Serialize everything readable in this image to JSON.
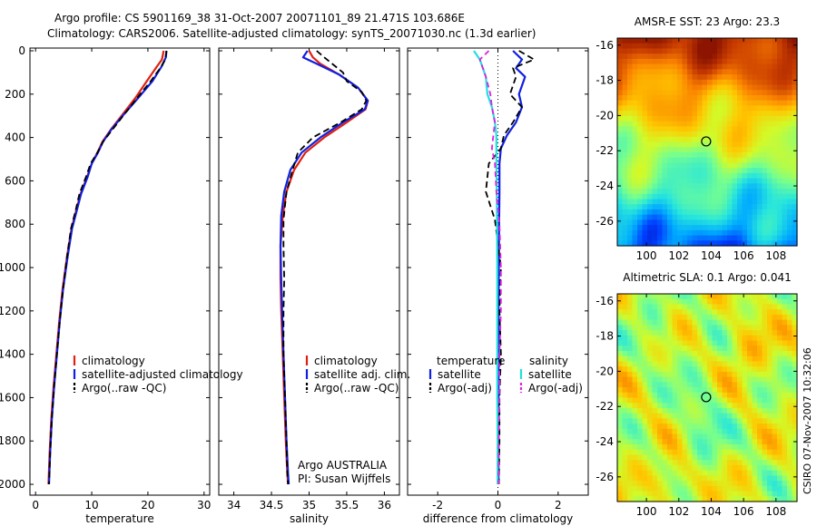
{
  "header": {
    "line1": "Argo profile: CS 5901169_38 31-Oct-2007 20071101_89 21.471S 103.686E",
    "line2": "Climatology: CARS2006. Satellite-adjusted climatology: synTS_20071030.nc (1.3d earlier)"
  },
  "side_label": "CSIRO 07-Nov-2007 10:32:06",
  "colors": {
    "climatology": "#e02010",
    "satellite": "#1020e0",
    "argo": "#000000",
    "sat_sal": "#20e0e0",
    "argo_sal": "#e020e0"
  },
  "chart_data": [
    {
      "type": "line",
      "id": "temperature",
      "xlabel": "temperature",
      "ylabel": "",
      "xlim": [
        -1,
        31
      ],
      "ylim": [
        2050,
        0
      ],
      "xticks": [
        "0",
        "10",
        "20",
        "30"
      ],
      "xtick_values": [
        0,
        10,
        20,
        30
      ],
      "yticks": [
        "0",
        "200",
        "400",
        "600",
        "800",
        "1000",
        "1200",
        "1400",
        "1600",
        "1800",
        "2000"
      ],
      "ytick_values": [
        0,
        200,
        400,
        600,
        800,
        1000,
        1200,
        1400,
        1600,
        1800,
        2000
      ],
      "legend": [
        "climatology",
        "satellite-adjusted climatology",
        "Argo(..raw -QC)"
      ],
      "series": [
        {
          "name": "climatology",
          "color": "climatology",
          "dash": "",
          "x": [
            22.8,
            22.5,
            21.4,
            19.8,
            17.7,
            15.3,
            13.5,
            11.9,
            11.0,
            10.0,
            9.2,
            8.0,
            7.2,
            6.4,
            5.6,
            4.8,
            4.2,
            3.7,
            3.2,
            2.8,
            2.5,
            2.3
          ],
          "y": [
            0,
            40,
            80,
            140,
            220,
            300,
            360,
            420,
            470,
            520,
            580,
            660,
            740,
            820,
            950,
            1100,
            1250,
            1400,
            1550,
            1700,
            1850,
            2000
          ]
        },
        {
          "name": "satellite-adjusted climatology",
          "color": "satellite",
          "dash": "",
          "x": [
            23.3,
            23.2,
            22.5,
            20.8,
            18.2,
            15.5,
            13.6,
            12.0,
            11.1,
            10.0,
            9.3,
            8.1,
            7.3,
            6.5,
            5.7,
            4.9,
            4.3,
            3.8,
            3.3,
            2.9,
            2.6,
            2.4
          ],
          "y": [
            0,
            30,
            70,
            140,
            220,
            300,
            360,
            420,
            470,
            520,
            580,
            660,
            740,
            820,
            950,
            1100,
            1250,
            1400,
            1550,
            1700,
            1850,
            2000
          ]
        },
        {
          "name": "Argo(..raw -QC)",
          "color": "argo",
          "dash": "7,4",
          "x": [
            23.3,
            23.1,
            22.2,
            20.5,
            18.0,
            15.6,
            13.8,
            12.0,
            11.0,
            9.8,
            9.0,
            7.8,
            7.1,
            6.3,
            5.6,
            4.9,
            4.3,
            3.8,
            3.3,
            2.9,
            2.6,
            2.4
          ],
          "y": [
            0,
            40,
            80,
            140,
            220,
            300,
            360,
            420,
            470,
            520,
            580,
            660,
            740,
            820,
            950,
            1100,
            1250,
            1400,
            1550,
            1700,
            1850,
            2000
          ]
        }
      ]
    },
    {
      "type": "line",
      "id": "salinity",
      "xlabel": "salinity",
      "ylabel": "",
      "xlim": [
        33.8,
        36.2
      ],
      "ylim": [
        2050,
        0
      ],
      "xticks": [
        "34",
        "34.5",
        "35",
        "35.5",
        "36"
      ],
      "xtick_values": [
        34,
        34.5,
        35,
        35.5,
        36
      ],
      "legend": [
        "climatology",
        "satellite adj. clim.",
        "Argo(..raw -QC)"
      ],
      "annotation": [
        "Argo AUSTRALIA",
        "PI: Susan Wijffels"
      ],
      "series": [
        {
          "name": "climatology",
          "color": "climatology",
          "dash": "",
          "x": [
            35.0,
            35.05,
            35.15,
            35.4,
            35.65,
            35.78,
            35.75,
            35.5,
            35.2,
            34.95,
            34.8,
            34.7,
            34.65,
            34.62,
            34.62,
            34.63,
            34.65,
            34.67,
            34.69,
            34.71,
            34.72
          ],
          "y": [
            0,
            30,
            60,
            110,
            170,
            230,
            270,
            330,
            400,
            470,
            550,
            650,
            760,
            900,
            1050,
            1200,
            1400,
            1600,
            1800,
            1950,
            2000
          ]
        },
        {
          "name": "satellite adj. clim.",
          "color": "satellite",
          "dash": "",
          "x": [
            34.98,
            34.92,
            35.1,
            35.4,
            35.65,
            35.78,
            35.74,
            35.45,
            35.15,
            34.9,
            34.75,
            34.67,
            34.63,
            34.62,
            34.63,
            34.64,
            34.66,
            34.68,
            34.7,
            34.72,
            34.73
          ],
          "y": [
            0,
            30,
            60,
            110,
            170,
            230,
            270,
            330,
            400,
            470,
            550,
            650,
            760,
            900,
            1050,
            1200,
            1400,
            1600,
            1800,
            1950,
            2000
          ]
        },
        {
          "name": "Argo(..raw -QC)",
          "color": "argo",
          "dash": "7,4",
          "x": [
            35.1,
            35.2,
            35.45,
            35.5,
            35.7,
            35.76,
            35.7,
            35.42,
            35.05,
            34.85,
            34.78,
            34.7,
            34.66,
            34.66,
            34.67,
            34.66,
            34.66,
            34.68,
            34.7,
            34.71,
            34.72
          ],
          "y": [
            0,
            30,
            100,
            140,
            190,
            230,
            270,
            330,
            400,
            470,
            550,
            650,
            780,
            900,
            1050,
            1200,
            1400,
            1600,
            1800,
            1950,
            2000
          ]
        }
      ]
    },
    {
      "type": "line",
      "id": "difference",
      "xlabel": "difference from climatology",
      "ylabel": "",
      "xlim": [
        -3,
        3
      ],
      "ylim": [
        2050,
        0
      ],
      "xticks": [
        "-2",
        "0",
        "2"
      ],
      "xtick_values": [
        -2,
        0,
        2
      ],
      "legend_headers": [
        "temperature",
        "salinity"
      ],
      "legend_left": [
        "satellite",
        "Argo(-adj)"
      ],
      "legend_right": [
        "satellite",
        "Argo(-adj)"
      ],
      "series": [
        {
          "name": "temperature satellite",
          "color": "satellite",
          "dash": "",
          "x": [
            0.5,
            0.8,
            0.6,
            0.9,
            0.7,
            0.8,
            0.6,
            0.3,
            0.1,
            0.05,
            0.05,
            0.04,
            0.03,
            0.02,
            0.02,
            0.02,
            0.02,
            0.02
          ],
          "y": [
            0,
            40,
            80,
            120,
            200,
            260,
            330,
            390,
            450,
            520,
            650,
            800,
            1000,
            1200,
            1400,
            1600,
            1800,
            2000
          ]
        },
        {
          "name": "temperature Argo(-adj)",
          "color": "argo",
          "dash": "7,4",
          "x": [
            0.7,
            1.2,
            0.5,
            0.6,
            0.4,
            0.8,
            0.5,
            0.2,
            0.1,
            -0.3,
            -0.4,
            -0.1,
            0.1,
            0.05,
            0.1,
            0.05,
            0.05,
            0.03
          ],
          "y": [
            0,
            40,
            80,
            120,
            200,
            260,
            330,
            390,
            450,
            520,
            650,
            780,
            1000,
            1200,
            1400,
            1600,
            1800,
            2000
          ]
        },
        {
          "name": "salinity satellite",
          "color": "sat_sal",
          "dash": "",
          "x": [
            -0.8,
            -0.6,
            -0.5,
            -0.4,
            -0.35,
            -0.2,
            -0.1,
            -0.05,
            -0.05,
            -0.05,
            -0.04,
            -0.03,
            -0.02,
            -0.02,
            -0.02,
            -0.02,
            -0.01,
            -0.01
          ],
          "y": [
            0,
            40,
            80,
            120,
            200,
            260,
            330,
            390,
            450,
            520,
            650,
            800,
            1000,
            1200,
            1400,
            1600,
            1800,
            2000
          ]
        },
        {
          "name": "salinity Argo(-adj)",
          "color": "argo_sal",
          "dash": "6,4",
          "x": [
            -0.3,
            -0.6,
            -0.5,
            -0.4,
            -0.25,
            -0.2,
            -0.1,
            -0.15,
            -0.2,
            -0.1,
            -0.05,
            0.05,
            0.1,
            0.1,
            0.05,
            0.05,
            0.03,
            0.02
          ],
          "y": [
            0,
            40,
            80,
            120,
            200,
            260,
            330,
            390,
            450,
            520,
            650,
            800,
            1000,
            1200,
            1400,
            1600,
            1800,
            2000
          ]
        }
      ]
    },
    {
      "type": "heatmap",
      "id": "sst_map",
      "title": "AMSR-E SST: 23 Argo: 23.3",
      "xlim": [
        98.2,
        109.3
      ],
      "ylim": [
        -27.4,
        -15.6
      ],
      "xticks": [
        "100",
        "102",
        "104",
        "106",
        "108"
      ],
      "xtick_values": [
        100,
        102,
        104,
        106,
        108
      ],
      "yticks": [
        "-16",
        "-18",
        "-20",
        "-22",
        "-24",
        "-26"
      ],
      "ytick_values": [
        -16,
        -18,
        -20,
        -22,
        -24,
        -26
      ],
      "marker": {
        "lon": 103.686,
        "lat": -21.471
      }
    },
    {
      "type": "heatmap",
      "id": "sla_map",
      "title": "Altimetric SLA: 0.1 Argo: 0.041",
      "xlim": [
        98.2,
        109.3
      ],
      "ylim": [
        -27.4,
        -15.6
      ],
      "xticks": [
        "100",
        "102",
        "104",
        "106",
        "108"
      ],
      "xtick_values": [
        100,
        102,
        104,
        106,
        108
      ],
      "yticks": [
        "-16",
        "-18",
        "-20",
        "-22",
        "-24",
        "-26"
      ],
      "ytick_values": [
        -16,
        -18,
        -20,
        -22,
        -24,
        -26
      ],
      "marker": {
        "lon": 103.686,
        "lat": -21.471
      }
    }
  ]
}
